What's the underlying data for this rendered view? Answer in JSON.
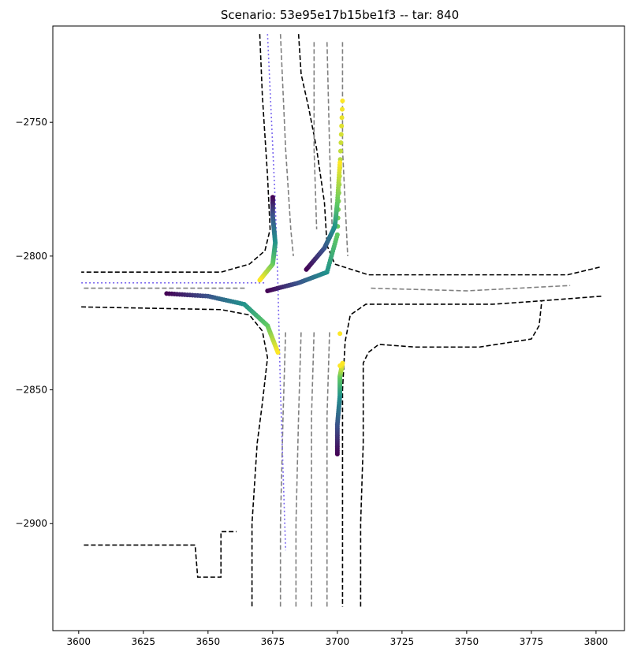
{
  "chart_data": {
    "type": "scatter",
    "title": "Scenario: 53e95e17b15be1f3 -- tar: 840",
    "xlabel": "",
    "ylabel": "",
    "xlim": [
      3590,
      3811
    ],
    "ylim": [
      -2940,
      -2714
    ],
    "x_ticks": [
      3600,
      3625,
      3650,
      3675,
      3700,
      3725,
      3750,
      3775,
      3800
    ],
    "y_ticks": [
      -2750,
      -2800,
      -2850,
      -2900
    ],
    "grid": false,
    "colormap": "viridis",
    "map_layers": {
      "road_edges": {
        "style": "dashed",
        "color": "#000000",
        "polylines": [
          [
            [
              3670,
              -2717
            ],
            [
              3671,
              -2740
            ],
            [
              3673,
              -2770
            ],
            [
              3674,
              -2790
            ],
            [
              3672,
              -2798
            ],
            [
              3666,
              -2803
            ],
            [
              3655,
              -2806
            ],
            [
              3601,
              -2806
            ]
          ],
          [
            [
              3601,
              -2819
            ],
            [
              3655,
              -2820
            ],
            [
              3666,
              -2822
            ],
            [
              3671,
              -2828
            ],
            [
              3673,
              -2838
            ],
            [
              3671,
              -2855
            ],
            [
              3669,
              -2870
            ],
            [
              3667,
              -2900
            ],
            [
              3667,
              -2931
            ]
          ],
          [
            [
              3685,
              -2717
            ],
            [
              3686,
              -2732
            ],
            [
              3689,
              -2745
            ],
            [
              3692,
              -2760
            ],
            [
              3695,
              -2780
            ],
            [
              3696,
              -2796
            ],
            [
              3699,
              -2803
            ],
            [
              3712,
              -2807
            ],
            [
              3789,
              -2807
            ],
            [
              3802,
              -2804
            ]
          ],
          [
            [
              3802,
              -2815
            ],
            [
              3775,
              -2817
            ],
            [
              3760,
              -2818
            ],
            [
              3735,
              -2818
            ],
            [
              3711,
              -2818
            ],
            [
              3705,
              -2822
            ],
            [
              3703,
              -2832
            ],
            [
              3702,
              -2850
            ],
            [
              3702,
              -2900
            ],
            [
              3702,
              -2931
            ]
          ],
          [
            [
              3709,
              -2931
            ],
            [
              3709,
              -2900
            ],
            [
              3710,
              -2870
            ],
            [
              3710,
              -2840
            ],
            [
              3712,
              -2836
            ],
            [
              3716,
              -2833
            ],
            [
              3730,
              -2834
            ],
            [
              3747,
              -2834
            ],
            [
              3755,
              -2834
            ],
            [
              3775,
              -2831
            ],
            [
              3778,
              -2826
            ],
            [
              3779,
              -2817
            ]
          ],
          [
            [
              3602,
              -2908
            ],
            [
              3620,
              -2908
            ],
            [
              3630,
              -2908
            ],
            [
              3645,
              -2908
            ],
            [
              3646,
              -2920
            ],
            [
              3655,
              -2920
            ],
            [
              3655,
              -2903
            ],
            [
              3661,
              -2903
            ]
          ]
        ]
      },
      "lane_markings": {
        "style": "dashed",
        "color": "#808080",
        "polylines": [
          [
            [
              3678,
              -2717
            ],
            [
              3680,
              -2760
            ],
            [
              3682,
              -2790
            ],
            [
              3683,
              -2800
            ]
          ],
          [
            [
              3691,
              -2720
            ],
            [
              3691,
              -2760
            ],
            [
              3692,
              -2790
            ]
          ],
          [
            [
              3696,
              -2720
            ],
            [
              3697,
              -2760
            ],
            [
              3698,
              -2790
            ]
          ],
          [
            [
              3702,
              -2720
            ],
            [
              3702,
              -2760
            ],
            [
              3704,
              -2800
            ]
          ],
          [
            [
              3602,
              -2812
            ],
            [
              3640,
              -2812
            ],
            [
              3665,
              -2812
            ]
          ],
          [
            [
              3713,
              -2812
            ],
            [
              3750,
              -2813
            ],
            [
              3790,
              -2811
            ]
          ],
          [
            [
              3678,
              -2931
            ],
            [
              3678,
              -2900
            ],
            [
              3679,
              -2860
            ],
            [
              3680,
              -2828
            ]
          ],
          [
            [
              3684,
              -2931
            ],
            [
              3684,
              -2900
            ],
            [
              3685,
              -2860
            ],
            [
              3686,
              -2828
            ]
          ],
          [
            [
              3690,
              -2931
            ],
            [
              3690,
              -2900
            ],
            [
              3690,
              -2860
            ],
            [
              3691,
              -2828
            ]
          ],
          [
            [
              3696,
              -2931
            ],
            [
              3696,
              -2900
            ],
            [
              3696,
              -2860
            ],
            [
              3697,
              -2828
            ]
          ]
        ]
      },
      "route": {
        "style": "dotted",
        "color": "#7b68ee",
        "polylines": [
          [
            [
              3673,
              -2717
            ],
            [
              3676,
              -2780
            ],
            [
              3677,
              -2810
            ],
            [
              3678,
              -2850
            ],
            [
              3680,
              -2910
            ]
          ],
          [
            [
              3601,
              -2810
            ],
            [
              3672,
              -2810
            ]
          ]
        ]
      }
    },
    "series": [
      {
        "x": [
          3675,
          3675,
          3676,
          3675,
          3670
        ],
        "y": [
          -2778,
          -2785,
          -2795,
          -2803,
          -2809
        ]
      },
      {
        "x": [
          3673,
          3685,
          3696,
          3700,
          3702
        ],
        "y": [
          -2813,
          -2810,
          -2806,
          -2792,
          -2742
        ]
      },
      {
        "x": [
          3688,
          3695,
          3699,
          3700,
          3701
        ],
        "y": [
          -2805,
          -2797,
          -2789,
          -2780,
          -2765
        ]
      },
      {
        "x": [
          3634,
          3650,
          3664,
          3673,
          3677
        ],
        "y": [
          -2814,
          -2815,
          -2818,
          -2826,
          -2836
        ]
      },
      {
        "x": [
          3700,
          3700,
          3701,
          3701,
          3702
        ],
        "y": [
          -2874,
          -2863,
          -2852,
          -2845,
          -2840
        ]
      }
    ],
    "static_points": [
      {
        "x": 3701,
        "y": -2829
      },
      {
        "x": 3701,
        "y": -2841
      }
    ]
  }
}
